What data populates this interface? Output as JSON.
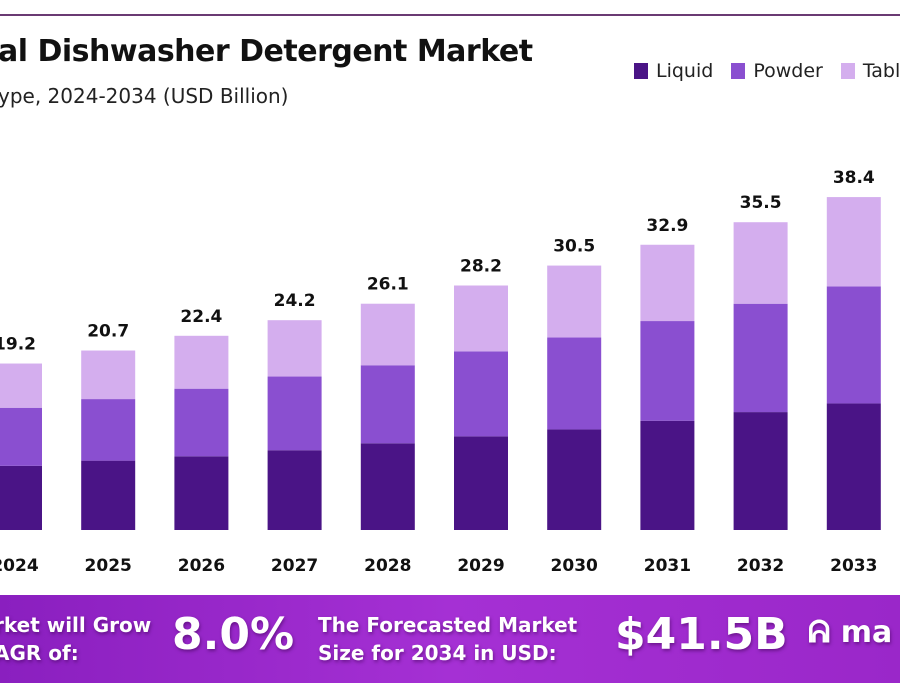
{
  "header": {
    "title": "al Dishwasher Detergent Market",
    "subtitle": "ype, 2024-2034 (USD Billion)"
  },
  "chart_data": {
    "type": "bar",
    "stacked": true,
    "categories": [
      "2024",
      "2025",
      "2026",
      "2027",
      "2028",
      "2029",
      "2030",
      "2031",
      "2032",
      "2033"
    ],
    "series": [
      {
        "name": "Liquid",
        "color": "#4a1486",
        "values": [
          7.4,
          8.0,
          8.5,
          9.2,
          10.0,
          10.8,
          11.6,
          12.6,
          13.6,
          14.6
        ]
      },
      {
        "name": "Powder",
        "color": "#8a4fd0",
        "values": [
          6.7,
          7.1,
          7.8,
          8.5,
          9.0,
          9.8,
          10.6,
          11.5,
          12.5,
          13.5
        ]
      },
      {
        "name": "Tablets",
        "color": "#d4aeee",
        "values": [
          5.1,
          5.6,
          6.1,
          6.5,
          7.1,
          7.6,
          8.3,
          8.8,
          9.4,
          10.3
        ]
      }
    ],
    "totals": [
      "19.2",
      "20.7",
      "22.4",
      "24.2",
      "26.1",
      "28.2",
      "30.5",
      "32.9",
      "35.5",
      "38.4"
    ],
    "legend_position": "top-right",
    "grid": false
  },
  "banner": {
    "cagr_line1": "rket will Grow",
    "cagr_line2": "AGR of:",
    "cagr_value": "8.0%",
    "forecast_line1": "The Forecasted Market",
    "forecast_line2": "Size for 2034 in USD:",
    "forecast_value": "$41.5B",
    "logo_text": "ma"
  }
}
